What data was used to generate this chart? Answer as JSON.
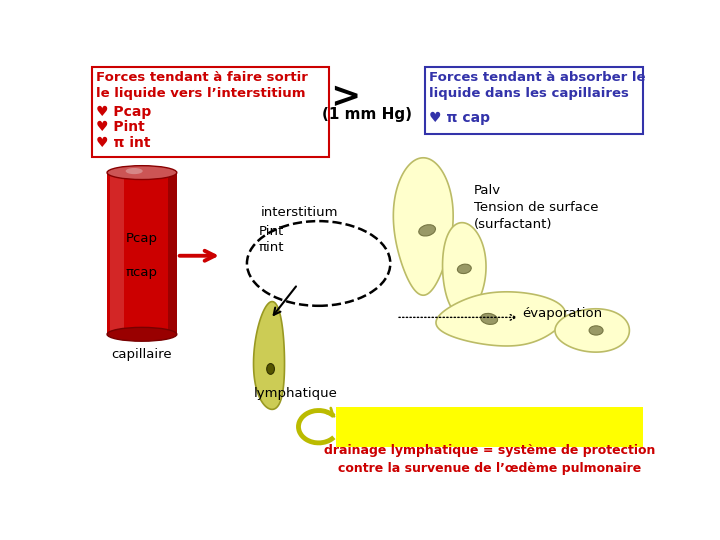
{
  "left_box_title": "Forces tendant à faire sortir\nle liquide vers l’interstitium",
  "left_box_color": "#cc0000",
  "left_box_items": [
    "Pcap",
    "Pint",
    "π int"
  ],
  "right_box_color": "#3333aa",
  "right_box_title": "Forces tendant à absorber le\nliquide dans les capillaires",
  "right_box_item": "π cap",
  "center_gt": ">",
  "center_mmhg": "(1 mm Hg)",
  "cylinder_label_pcap": "Pcap",
  "cylinder_label_picap": "πcap",
  "cylinder_bottom_label": "capillaire",
  "interstitium_label": "interstitium",
  "pint_label": "Pint\nπint",
  "palv_label": "Palv\nTension de surface\n(surfactant)",
  "evaporation_label": "évaporation",
  "lymphatique_label": "lymphatique",
  "bottom_text": "drainage lymphatique = système de protection\ncontre la survenue de l’œdème pulmonaire",
  "bottom_text_color": "#cc0000",
  "bottom_box_color": "#ffff00"
}
